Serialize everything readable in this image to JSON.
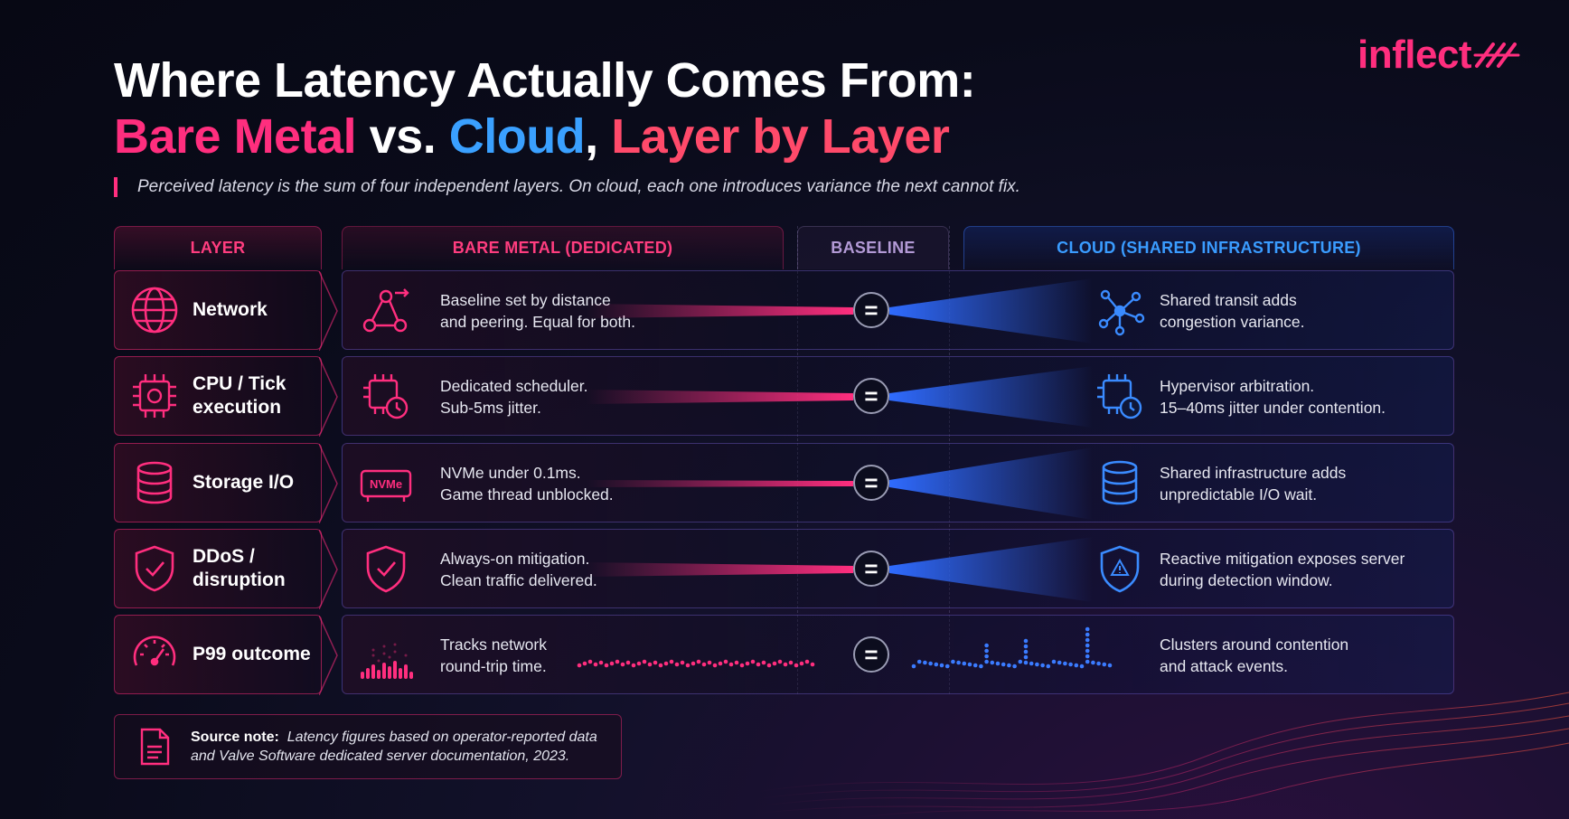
{
  "logo": {
    "text": "inflect"
  },
  "title": {
    "line1": "Where Latency Actually Comes From:",
    "line2_part1": "Bare Metal",
    "line2_part2": " vs. ",
    "line2_part3": "Cloud",
    "line2_part4": ", ",
    "line2_part5": "Layer by Layer"
  },
  "subtitle": "Perceived latency is the sum of four independent layers. On cloud, each one introduces variance the next cannot fix.",
  "headers": {
    "layer": "LAYER",
    "bare_metal": "BARE METAL (DEDICATED)",
    "baseline": "BASELINE",
    "cloud": "CLOUD (SHARED INFRASTRUCTURE)"
  },
  "colors": {
    "pink": "#ff2e7e",
    "blue": "#3a7bff",
    "bg": "#0a0b1a"
  },
  "rows": [
    {
      "layer_line1": "Network",
      "layer_line2": "",
      "layer_icon": "globe-icon",
      "bm_icon": "network-nodes-icon",
      "bm_line1": "Baseline set by distance",
      "bm_line2": "and peering. Equal for both.",
      "baseline": "=",
      "cl_icon": "hub-network-icon",
      "cl_line1": "Shared transit adds",
      "cl_line2": "congestion variance."
    },
    {
      "layer_line1": "CPU / Tick",
      "layer_line2": "execution",
      "layer_icon": "cpu-chip-icon",
      "bm_icon": "cpu-clock-icon",
      "bm_line1": "Dedicated scheduler.",
      "bm_line2": "Sub-5ms jitter.",
      "baseline": "=",
      "cl_icon": "cpu-clock-icon",
      "cl_line1": "Hypervisor arbitration.",
      "cl_line2": "15–40ms jitter under contention."
    },
    {
      "layer_line1": "Storage I/O",
      "layer_line2": "",
      "layer_icon": "database-icon",
      "bm_icon": "nvme-drive-icon",
      "bm_icon_label": "NVMe",
      "bm_line1": "NVMe under 0.1ms.",
      "bm_line2": "Game thread unblocked.",
      "baseline": "=",
      "cl_icon": "database-icon",
      "cl_line1": "Shared infrastructure adds",
      "cl_line2": "unpredictable I/O wait."
    },
    {
      "layer_line1": "DDoS /",
      "layer_line2": "disruption",
      "layer_icon": "shield-check-icon",
      "bm_icon": "shield-check-icon",
      "bm_line1": "Always-on mitigation.",
      "bm_line2": "Clean traffic delivered.",
      "baseline": "=",
      "cl_icon": "shield-warning-icon",
      "cl_line1": "Reactive mitigation exposes server",
      "cl_line2": "during detection window."
    },
    {
      "layer_line1": "P99 outcome",
      "layer_line2": "",
      "layer_icon": "gauge-icon",
      "bm_icon": "histogram-icon",
      "bm_line1": "Tracks network",
      "bm_line2": "round-trip time.",
      "baseline": "=",
      "cl_icon": "",
      "cl_line1": "Clusters around contention",
      "cl_line2": "and attack events."
    }
  ],
  "note": {
    "label": "Source note:",
    "line1": "Latency figures based on operator-reported data",
    "line2": "and Valve Software dedicated server documentation, 2023."
  }
}
